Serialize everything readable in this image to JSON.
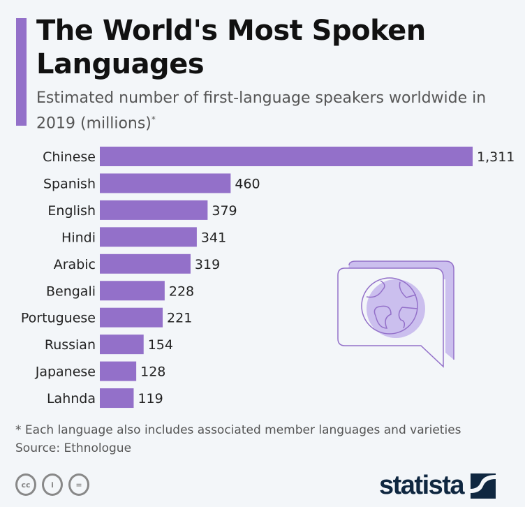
{
  "title": "The World's Most Spoken Languages",
  "subtitle": "Estimated number of first-language speakers worldwide in 2019 (millions)",
  "subtitle_mark": "*",
  "footnote": "* Each language also includes associated member languages and varieties",
  "source": "Source: Ethnologue",
  "brand": "statista",
  "license_icons": [
    "cc-icon",
    "attribution-icon",
    "no-derivatives-icon"
  ],
  "colors": {
    "bar": "#9370c9",
    "accent": "#9370c9",
    "background": "#f3f6f9"
  },
  "chart_data": {
    "type": "bar",
    "orientation": "horizontal",
    "categories": [
      "Chinese",
      "Spanish",
      "English",
      "Hindi",
      "Arabic",
      "Bengali",
      "Portuguese",
      "Russian",
      "Japanese",
      "Lahnda"
    ],
    "values": [
      1311,
      460,
      379,
      341,
      319,
      228,
      221,
      154,
      128,
      119
    ],
    "value_labels": [
      "1,311",
      "460",
      "379",
      "341",
      "319",
      "228",
      "221",
      "154",
      "128",
      "119"
    ],
    "xlim": [
      0,
      1311
    ],
    "grid": false
  }
}
